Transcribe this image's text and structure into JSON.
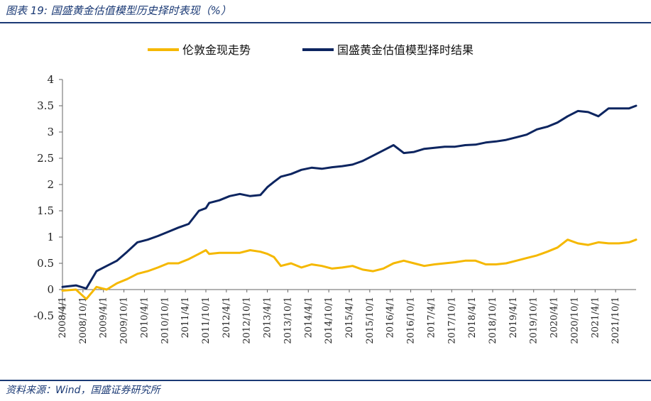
{
  "figure": {
    "title": "图表 19: 国盛黄金估值模型历史择时表现（%）",
    "source": "资料来源：Wind，国盛证券研究所"
  },
  "colors": {
    "accent": "#1b3a75",
    "gold_series": "#f5b800",
    "model_series": "#0d2560"
  },
  "chart_data": {
    "type": "line",
    "title": "",
    "xlabel": "",
    "ylabel": "",
    "ylim": [
      -0.5,
      4
    ],
    "yticks": [
      -0.5,
      0,
      0.5,
      1,
      1.5,
      2,
      2.5,
      3,
      3.5,
      4
    ],
    "ytick_labels": [
      "-0.5",
      "0",
      "0.5",
      "1",
      "1.5",
      "2",
      "2.5",
      "3",
      "3.5",
      "4"
    ],
    "xtick_labels": [
      "2008/4/1",
      "2008/10/1",
      "2009/4/1",
      "2009/10/1",
      "2010/4/1",
      "2010/10/1",
      "2011/4/1",
      "2011/10/1",
      "2012/4/1",
      "2012/10/1",
      "2013/4/1",
      "2013/10/1",
      "2014/4/1",
      "2014/10/1",
      "2015/4/1",
      "2015/10/1",
      "2016/4/1",
      "2016/10/1",
      "2017/4/1",
      "2017/10/1",
      "2018/4/1",
      "2018/10/1",
      "2019/4/1",
      "2019/10/1",
      "2020/4/1",
      "2020/10/1",
      "2021/4/1",
      "2021/10/1"
    ],
    "x_years": [
      2008.17,
      2008.5,
      2008.75,
      2009.0,
      2009.25,
      2009.5,
      2009.75,
      2010.0,
      2010.25,
      2010.5,
      2010.75,
      2011.0,
      2011.25,
      2011.5,
      2011.67,
      2011.75,
      2012.0,
      2012.25,
      2012.5,
      2012.75,
      2013.0,
      2013.17,
      2013.33,
      2013.5,
      2013.75,
      2014.0,
      2014.25,
      2014.5,
      2014.75,
      2015.0,
      2015.25,
      2015.5,
      2015.75,
      2016.0,
      2016.25,
      2016.5,
      2016.75,
      2017.0,
      2017.25,
      2017.5,
      2017.75,
      2018.0,
      2018.25,
      2018.5,
      2018.75,
      2019.0,
      2019.25,
      2019.5,
      2019.75,
      2020.0,
      2020.25,
      2020.5,
      2020.75,
      2021.0,
      2021.25,
      2021.5,
      2021.75,
      2022.0,
      2022.17
    ],
    "legend_position": "top-center",
    "grid": false,
    "series": [
      {
        "name": "伦敦金现走势",
        "color": "#f5b800",
        "values": [
          -0.02,
          0.0,
          -0.18,
          0.05,
          0.0,
          0.12,
          0.2,
          0.3,
          0.35,
          0.42,
          0.5,
          0.5,
          0.58,
          0.68,
          0.75,
          0.68,
          0.7,
          0.7,
          0.7,
          0.75,
          0.72,
          0.68,
          0.62,
          0.45,
          0.5,
          0.42,
          0.48,
          0.45,
          0.4,
          0.42,
          0.45,
          0.38,
          0.35,
          0.4,
          0.5,
          0.55,
          0.5,
          0.45,
          0.48,
          0.5,
          0.52,
          0.55,
          0.55,
          0.48,
          0.48,
          0.5,
          0.55,
          0.6,
          0.65,
          0.72,
          0.8,
          0.95,
          0.88,
          0.85,
          0.9,
          0.88,
          0.88,
          0.9,
          0.95
        ]
      },
      {
        "name": "国盛黄金估值模型择时结果",
        "color": "#0d2560",
        "values": [
          0.05,
          0.08,
          0.02,
          0.35,
          0.45,
          0.55,
          0.72,
          0.9,
          0.95,
          1.02,
          1.1,
          1.18,
          1.25,
          1.5,
          1.55,
          1.65,
          1.7,
          1.78,
          1.82,
          1.78,
          1.8,
          1.95,
          2.05,
          2.15,
          2.2,
          2.28,
          2.32,
          2.3,
          2.33,
          2.35,
          2.38,
          2.45,
          2.55,
          2.65,
          2.75,
          2.6,
          2.62,
          2.68,
          2.7,
          2.72,
          2.72,
          2.75,
          2.76,
          2.8,
          2.82,
          2.85,
          2.9,
          2.95,
          3.05,
          3.1,
          3.18,
          3.3,
          3.4,
          3.38,
          3.3,
          3.45,
          3.45,
          3.45,
          3.5
        ]
      }
    ]
  }
}
